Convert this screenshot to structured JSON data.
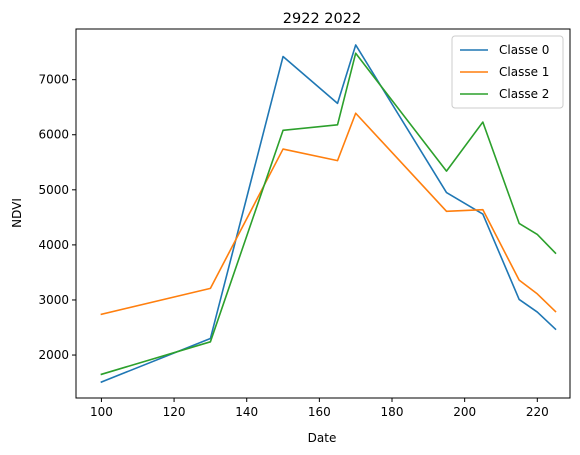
{
  "chart_data": {
    "type": "line",
    "title": "2922 2022",
    "xlabel": "Date",
    "ylabel": "NDVI",
    "xlim": [
      93,
      229
    ],
    "ylim": [
      1220,
      7920
    ],
    "xticks": [
      100,
      120,
      140,
      160,
      180,
      200,
      220
    ],
    "yticks": [
      2000,
      3000,
      4000,
      5000,
      6000,
      7000
    ],
    "grid": false,
    "legend_position": "top-right",
    "x": [
      100,
      130,
      150,
      165,
      170,
      195,
      205,
      215,
      220,
      225
    ],
    "series": [
      {
        "name": "Classe 0",
        "color": "#1f77b4",
        "values": [
          1510,
          2300,
          7420,
          6570,
          7630,
          4950,
          4560,
          3010,
          2780,
          2470
        ]
      },
      {
        "name": "Classe 1",
        "color": "#ff7f0e",
        "values": [
          2740,
          3210,
          5740,
          5530,
          6390,
          4610,
          4640,
          3360,
          3110,
          2790
        ]
      },
      {
        "name": "Classe 2",
        "color": "#2ca02c",
        "values": [
          1650,
          2240,
          6080,
          6180,
          7480,
          5340,
          6230,
          4390,
          4190,
          3850
        ]
      }
    ]
  }
}
